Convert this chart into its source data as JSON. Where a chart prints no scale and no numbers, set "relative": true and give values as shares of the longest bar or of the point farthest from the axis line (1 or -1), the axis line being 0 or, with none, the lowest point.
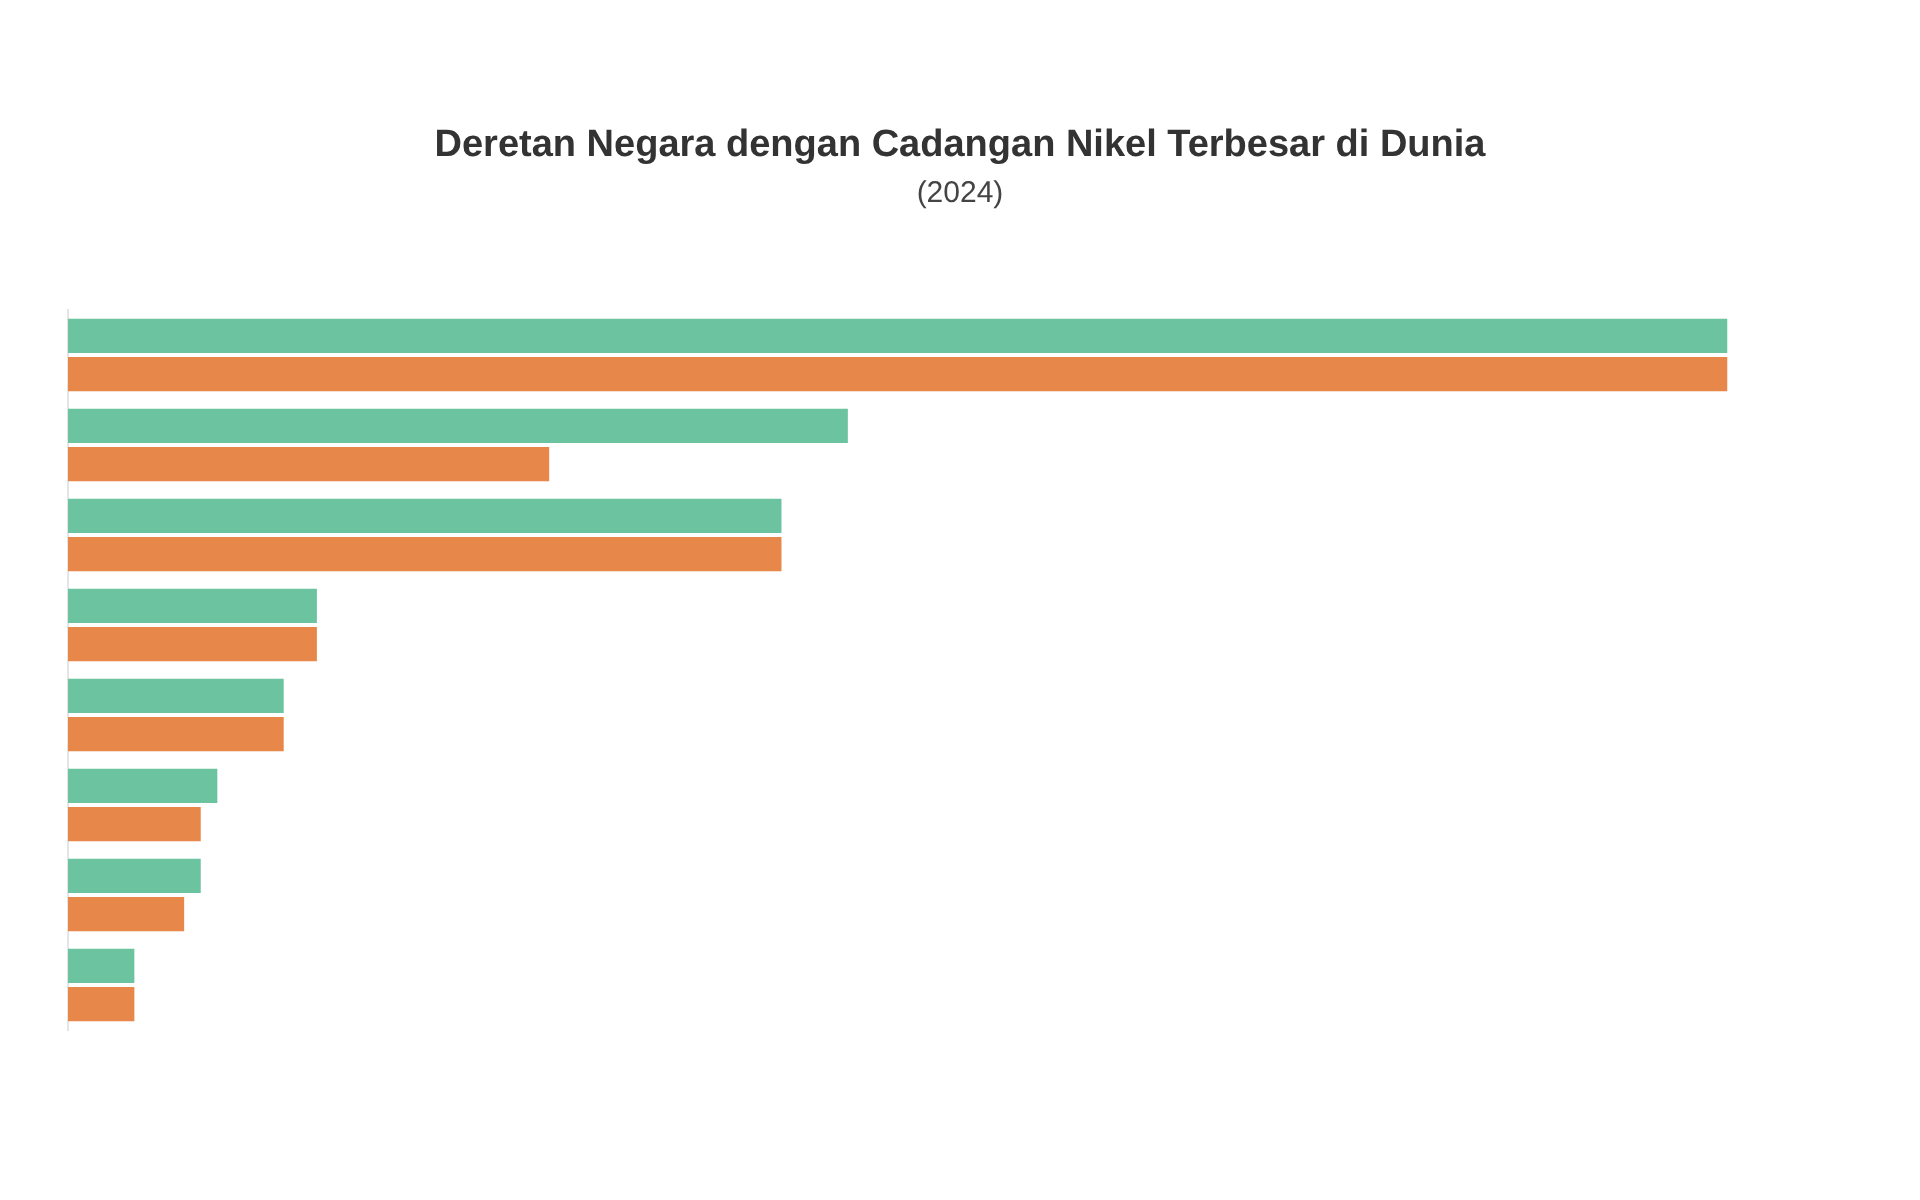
{
  "chart_data": {
    "type": "bar",
    "orientation": "horizontal",
    "relative": true,
    "title": "Deretan Negara dengan Cadangan Nikel Terbesar di Dunia",
    "subtitle": "(2024)",
    "categories": [
      null,
      null,
      null,
      null,
      null,
      null,
      null,
      null
    ],
    "series": [
      {
        "color": "#6cc3a0",
        "values": [
          1,
          0.47,
          0.43,
          0.15,
          0.13,
          0.09,
          0.08,
          0.04
        ]
      },
      {
        "color": "#e8874a",
        "values": [
          1,
          0.29,
          0.43,
          0.15,
          0.13,
          0.08,
          0.07,
          0.04
        ]
      }
    ]
  }
}
